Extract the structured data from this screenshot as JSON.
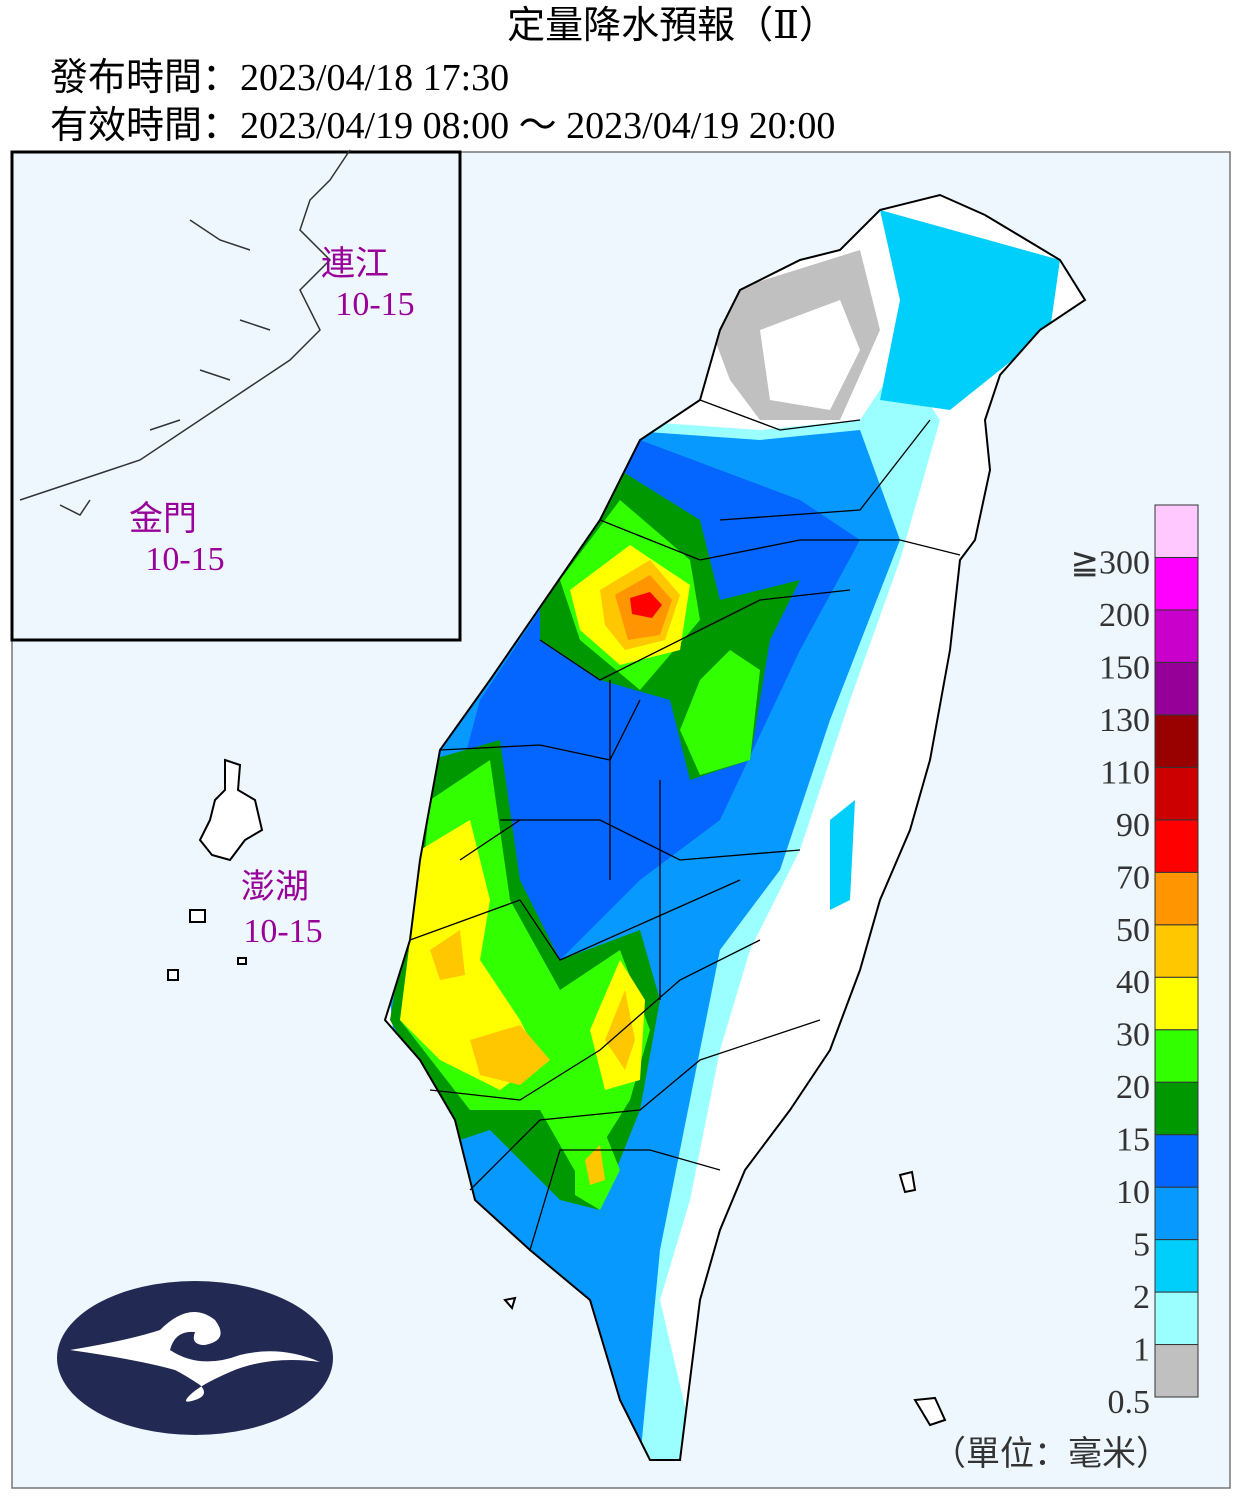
{
  "header": {
    "title": "定量降水預報（Ⅱ）",
    "issued": "發布時間：2023/04/18 17:30",
    "valid": "有效時間：2023/04/19 08:00 ～ 2023/04/19 20:00"
  },
  "islands": [
    {
      "name": "連江",
      "range": "10-15"
    },
    {
      "name": "金門",
      "range": "10-15"
    },
    {
      "name": "澎湖",
      "range": "10-15"
    }
  ],
  "legend": {
    "bins": [
      {
        "label": "0.5",
        "color": "#c0c0c0"
      },
      {
        "label": "1",
        "color": "#9bffff"
      },
      {
        "label": "2",
        "color": "#00cffb"
      },
      {
        "label": "5",
        "color": "#0899fe"
      },
      {
        "label": "10",
        "color": "#0466ff"
      },
      {
        "label": "15",
        "color": "#009800"
      },
      {
        "label": "20",
        "color": "#32ff00"
      },
      {
        "label": "30",
        "color": "#ffff00"
      },
      {
        "label": "40",
        "color": "#ffc700"
      },
      {
        "label": "50",
        "color": "#ff9500"
      },
      {
        "label": "70",
        "color": "#ff0000"
      },
      {
        "label": "90",
        "color": "#cc0000"
      },
      {
        "label": "110",
        "color": "#990000"
      },
      {
        "label": "130",
        "color": "#960099"
      },
      {
        "label": "150",
        "color": "#c900cc"
      },
      {
        "label": "200",
        "color": "#ff00ff"
      },
      {
        "label": "≧300",
        "color": "#ffc8ff"
      }
    ],
    "unit": "（單位：毫米）"
  }
}
